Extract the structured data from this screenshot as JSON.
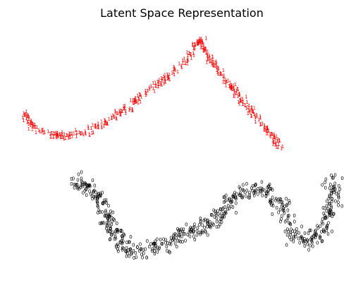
{
  "chart_data": {
    "type": "scatter",
    "title": "Latent Space Representation",
    "xlabel": "",
    "ylabel": "",
    "axes_visible": false,
    "grid": false,
    "marker": "digit text labels",
    "series": [
      {
        "label": "1",
        "color": "#ff0000",
        "path": [
          [
            40,
            160
          ],
          [
            36,
            168
          ],
          [
            40,
            176
          ],
          [
            50,
            184
          ],
          [
            70,
            192
          ],
          [
            95,
            196
          ],
          [
            120,
            190
          ],
          [
            150,
            175
          ],
          [
            180,
            155
          ],
          [
            210,
            130
          ],
          [
            240,
            110
          ],
          [
            265,
            90
          ],
          [
            283,
            58
          ],
          [
            300,
            88
          ],
          [
            318,
            112
          ],
          [
            340,
            140
          ],
          [
            360,
            163
          ],
          [
            382,
            190
          ],
          [
            400,
            212
          ]
        ],
        "n_points": 460
      },
      {
        "label": "0",
        "color": "#000000",
        "path": [
          [
            105,
            255
          ],
          [
            125,
            268
          ],
          [
            145,
            295
          ],
          [
            160,
            330
          ],
          [
            180,
            355
          ],
          [
            210,
            358
          ],
          [
            240,
            345
          ],
          [
            270,
            330
          ],
          [
            300,
            322
          ],
          [
            320,
            295
          ],
          [
            345,
            272
          ],
          [
            375,
            268
          ],
          [
            400,
            300
          ],
          [
            420,
            340
          ],
          [
            440,
            345
          ],
          [
            460,
            325
          ],
          [
            475,
            280
          ],
          [
            470,
            258
          ]
        ],
        "n_points": 620
      }
    ]
  }
}
